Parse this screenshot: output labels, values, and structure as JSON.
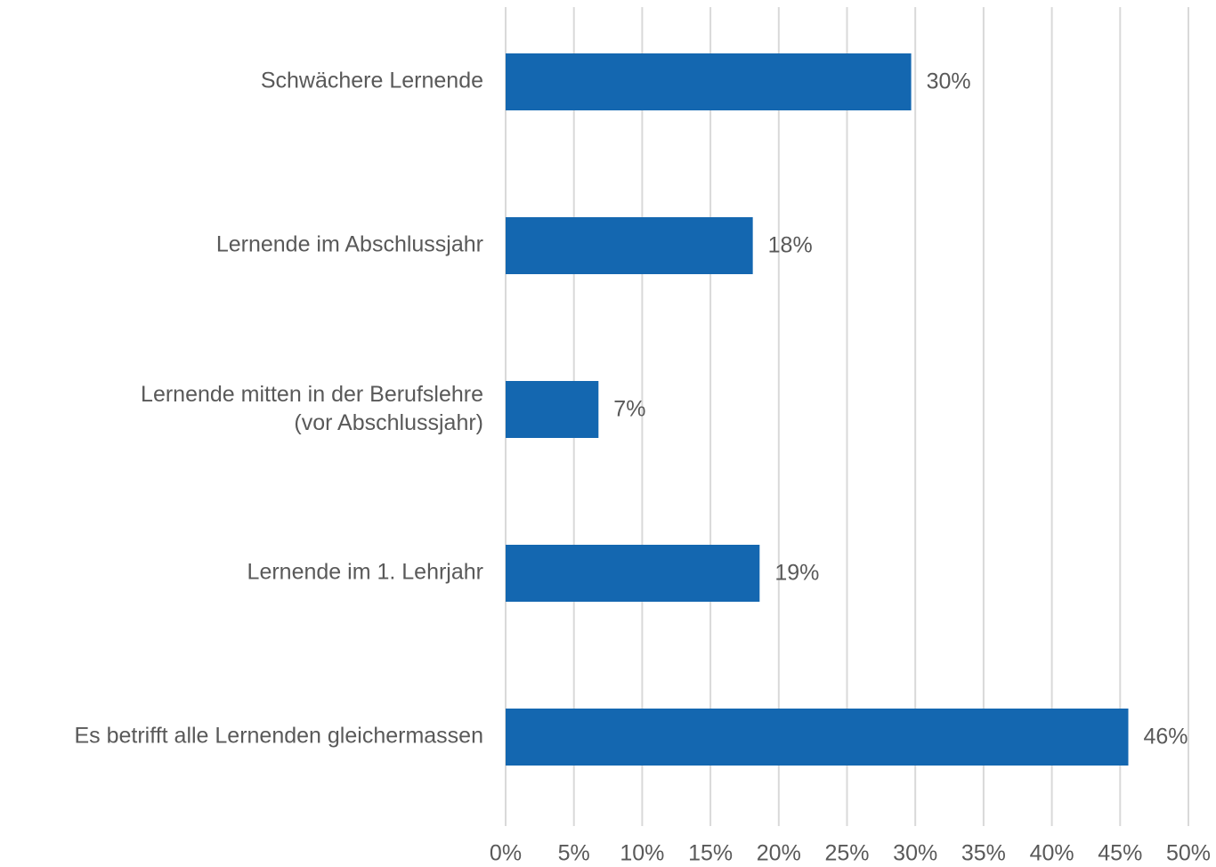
{
  "chart_data": {
    "type": "bar",
    "orientation": "horizontal",
    "categories": [
      "Schwächere Lernende",
      "Lernende im Abschlussjahr",
      "Lernende mitten in der Berufslehre\n(vor Abschlussjahr)",
      "Lernende im 1. Lehrjahr",
      "Es betrifft alle Lernenden gleichermassen"
    ],
    "values": [
      29.7,
      18.1,
      6.8,
      18.6,
      45.6
    ],
    "value_labels": [
      "30%",
      "18%",
      "7%",
      "19%",
      "46%"
    ],
    "color": "#1467b0",
    "xlim": [
      0,
      50
    ],
    "xticks": [
      {
        "value": 0,
        "label": "0%"
      },
      {
        "value": 5,
        "label": "5%"
      },
      {
        "value": 10,
        "label": "10%"
      },
      {
        "value": 15,
        "label": "15%"
      },
      {
        "value": 20,
        "label": "20%"
      },
      {
        "value": 25,
        "label": "25%"
      },
      {
        "value": 30,
        "label": "30%"
      },
      {
        "value": 35,
        "label": "35%"
      },
      {
        "value": 40,
        "label": "40%"
      },
      {
        "value": 45,
        "label": "45%"
      },
      {
        "value": 50,
        "label": "50%"
      }
    ],
    "grid": true
  }
}
